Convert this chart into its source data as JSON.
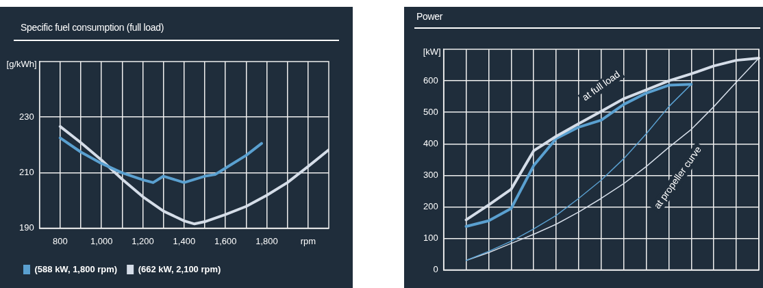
{
  "chart_data": [
    {
      "type": "line",
      "title": "Specific fuel consumption (full load)",
      "xlabel": "rpm",
      "ylabel": "[g/kWh]",
      "xlim": [
        700,
        2100
      ],
      "ylim": [
        190,
        250
      ],
      "xticks": [
        {
          "value": 800,
          "label": "800"
        },
        {
          "value": 900,
          "label": null
        },
        {
          "value": 1000,
          "label": "1,000"
        },
        {
          "value": 1100,
          "label": null
        },
        {
          "value": 1200,
          "label": "1,200"
        },
        {
          "value": 1300,
          "label": null
        },
        {
          "value": 1400,
          "label": "1,400"
        },
        {
          "value": 1500,
          "label": null
        },
        {
          "value": 1600,
          "label": "1,600"
        },
        {
          "value": 1700,
          "label": null
        },
        {
          "value": 1800,
          "label": "1,800"
        },
        {
          "value": 1900,
          "label": null
        },
        {
          "value": 2000,
          "label": null
        }
      ],
      "yticks": [
        190,
        210,
        230
      ],
      "grid": true,
      "legend": "bottom",
      "marker": "none",
      "line_style": "solid",
      "series": [
        {
          "name": "(588 kW, 1,800 rpm)",
          "color": "#5aa0d0",
          "x": [
            800,
            900,
            1000,
            1100,
            1200,
            1250,
            1300,
            1400,
            1500,
            1550,
            1600,
            1700,
            1775
          ],
          "values": [
            222.5,
            217.4,
            213.3,
            209.9,
            207.4,
            206.4,
            208.7,
            206.4,
            208.7,
            209.3,
            211.6,
            216.2,
            220.5
          ]
        },
        {
          "name": "(662 kW, 2,100 rpm)",
          "color": "#d5dde8",
          "x": [
            800,
            900,
            1000,
            1100,
            1200,
            1300,
            1400,
            1450,
            1500,
            1600,
            1700,
            1800,
            1900,
            2000,
            2100
          ],
          "values": [
            226.6,
            220.8,
            214.5,
            207.6,
            201.3,
            196.1,
            192.6,
            191.5,
            192.3,
            194.9,
            197.8,
            201.8,
            206.4,
            212.2,
            218.2
          ]
        }
      ]
    },
    {
      "type": "line",
      "title": "Power",
      "ylabel": "[kW]",
      "ylim": [
        0,
        700
      ],
      "yticks": [
        0,
        100,
        200,
        300,
        400,
        500,
        600
      ],
      "grid": true,
      "marker": "none",
      "line_style": "solid",
      "categories": [
        null,
        null,
        null,
        null,
        null,
        null,
        null,
        null,
        null,
        null,
        null,
        null,
        null,
        null,
        null
      ],
      "annotations": [
        "at full load",
        "at propeller curve"
      ],
      "series": [
        {
          "color": "#d5dde8",
          "values": [
            null,
            159,
            206,
            256,
            378,
            424,
            464,
            503,
            543,
            571,
            600,
            622,
            647,
            665,
            672
          ]
        },
        {
          "color": "#5aa0d0",
          "values": [
            null,
            138,
            156,
            195,
            331,
            417,
            453,
            475,
            525,
            561,
            586,
            589,
            null,
            null,
            null
          ]
        },
        {
          "color": "#5aa0d0",
          "values": [
            null,
            30,
            59,
            91,
            130,
            173,
            227,
            285,
            353,
            432,
            518,
            589,
            null,
            null,
            null
          ]
        },
        {
          "color": "#d5dde8",
          "values": [
            null,
            30,
            55,
            84,
            113,
            145,
            184,
            227,
            274,
            328,
            389,
            446,
            518,
            596,
            672
          ]
        }
      ]
    }
  ]
}
